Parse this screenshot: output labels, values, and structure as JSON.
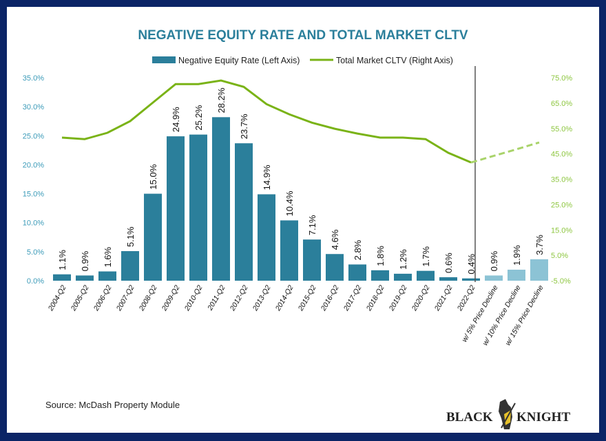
{
  "chart_data": {
    "type": "bar+line",
    "title": "NEGATIVE EQUITY RATE AND TOTAL MARKET CLTV",
    "categories": [
      "2004-Q2",
      "2005-Q2",
      "2006-Q2",
      "2007-Q2",
      "2008-Q2",
      "2009-Q2",
      "2010-Q2",
      "2011-Q2",
      "2012-Q2",
      "2013-Q2",
      "2014-Q2",
      "2015-Q2",
      "2016-Q2",
      "2017-Q2",
      "2018-Q2",
      "2019-Q2",
      "2020-Q2",
      "2021-Q2",
      "2022-Q2",
      "w/ 5% Price Decline",
      "w/ 10% Price Decline",
      "w/ 15% Price Decline"
    ],
    "series": [
      {
        "name": "Negative Equity Rate (Left Axis)",
        "type": "bar",
        "axis": "left",
        "color": "#2b7f9b",
        "projected_color": "#8cc3d5",
        "values": [
          1.1,
          0.9,
          1.6,
          5.1,
          15.0,
          24.9,
          25.2,
          28.2,
          23.7,
          14.9,
          10.4,
          7.1,
          4.6,
          2.8,
          1.8,
          1.2,
          1.7,
          0.6,
          0.4,
          0.9,
          1.9,
          3.7
        ],
        "labels": [
          "1.1%",
          "0.9%",
          "1.6%",
          "5.1%",
          "15.0%",
          "24.9%",
          "25.2%",
          "28.2%",
          "23.7%",
          "14.9%",
          "10.4%",
          "7.1%",
          "4.6%",
          "2.8%",
          "1.8%",
          "1.2%",
          "1.7%",
          "0.6%",
          "0.4%",
          "0.9%",
          "1.9%",
          "3.7%"
        ]
      },
      {
        "name": "Total Market CLTV (Right Axis)",
        "type": "line",
        "axis": "right",
        "color": "#7ab317",
        "values": [
          51.4,
          50.8,
          53.3,
          57.9,
          65.2,
          72.5,
          72.5,
          73.9,
          71.4,
          64.6,
          60.6,
          57.3,
          54.9,
          53.0,
          51.4,
          51.4,
          50.8,
          45.4,
          41.6,
          44.2,
          46.8,
          49.5
        ],
        "projected_from_index": 18
      }
    ],
    "projected_start_index": 19,
    "left_axis": {
      "ylim": [
        0,
        35
      ],
      "ticks": [
        "0.0%",
        "5.0%",
        "10.0%",
        "15.0%",
        "20.0%",
        "25.0%",
        "30.0%",
        "35.0%"
      ],
      "color": "#3a9ab8"
    },
    "right_axis": {
      "ylim": [
        -5,
        75
      ],
      "ticks": [
        "-5.0%",
        "5.0%",
        "15.0%",
        "25.0%",
        "35.0%",
        "45.0%",
        "55.0%",
        "65.0%",
        "75.0%"
      ],
      "color": "#8dc63f"
    },
    "legend_placement": "top",
    "grid": false,
    "source": "Source: McDash Property Module",
    "logo_text": "BLACK KNIGHT",
    "title_color": "#2b7f9b"
  }
}
